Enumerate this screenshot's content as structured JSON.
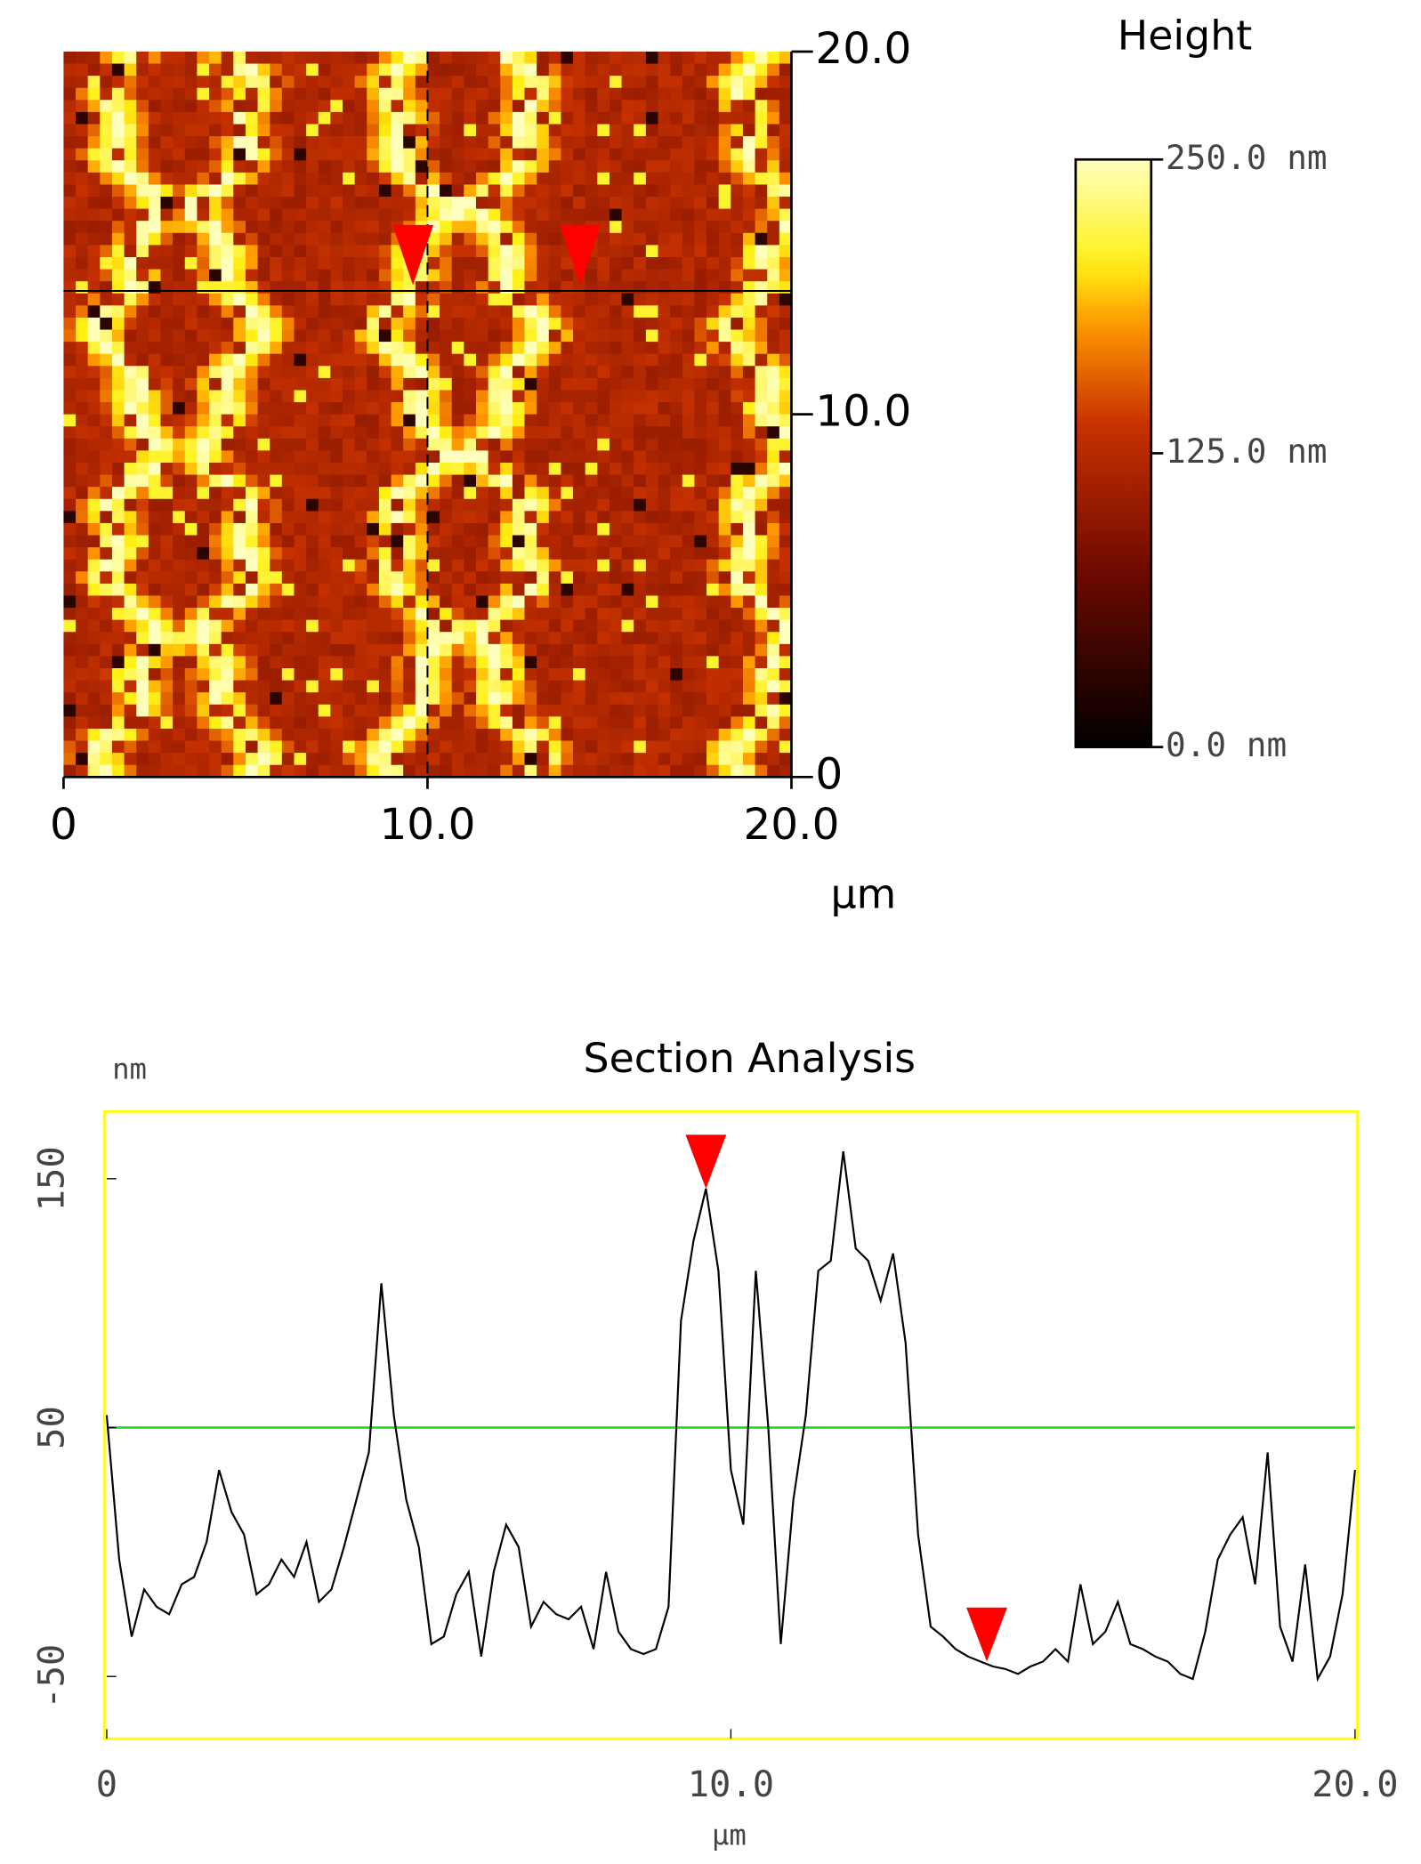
{
  "chart_data": [
    {
      "type": "image",
      "colorbar_title": "Height",
      "x_label": "µm",
      "xlim": [
        0,
        20
      ],
      "ylim": [
        0,
        20
      ],
      "xticks": [
        0,
        {
          "value": 10,
          "label": "10.0"
        },
        {
          "value": 20,
          "label": "20.0"
        }
      ],
      "yticks": [
        0,
        {
          "value": 10,
          "label": "10.0"
        },
        {
          "value": 20,
          "label": "20.0"
        }
      ],
      "clim": [
        0,
        250
      ],
      "cticks": [
        {
          "value": 0,
          "label": "0.0 nm"
        },
        {
          "value": 125,
          "label": "125.0 nm"
        },
        {
          "value": 250,
          "label": "250.0 nm"
        }
      ],
      "section_y": 13.4,
      "cursor_x": 10,
      "markers": [
        9.6,
        14.2
      ],
      "marker_color": "#ff0000"
    },
    {
      "type": "line",
      "title": "Section Analysis",
      "y_label": "nm",
      "x_label": "µm",
      "xlim": [
        0,
        20
      ],
      "ylim": [
        -75,
        177
      ],
      "xticks": [
        0,
        {
          "value": 10,
          "label": "10.0"
        },
        {
          "value": 20,
          "label": "20.0"
        }
      ],
      "yticks": [
        -50,
        50,
        150
      ],
      "reference_line": 50,
      "reference_color": "#22dd22",
      "frame_color": "#ffff00",
      "color": "#000000",
      "markers": [
        9.6,
        14.1
      ],
      "marker_color": "#ff0000",
      "x": [
        0,
        0.2,
        0.4,
        0.6,
        0.8,
        1,
        1.2,
        1.4,
        1.6,
        1.8,
        2,
        2.2,
        2.4,
        2.6,
        2.8,
        3,
        3.2,
        3.4,
        3.6,
        3.8,
        4,
        4.2,
        4.4,
        4.6,
        4.8,
        5,
        5.2,
        5.4,
        5.6,
        5.8,
        6,
        6.2,
        6.4,
        6.6,
        6.8,
        7,
        7.2,
        7.4,
        7.6,
        7.8,
        8,
        8.2,
        8.4,
        8.6,
        8.8,
        9,
        9.2,
        9.4,
        9.6,
        9.8,
        10,
        10.2,
        10.4,
        10.6,
        10.8,
        11,
        11.2,
        11.4,
        11.6,
        11.8,
        12,
        12.2,
        12.4,
        12.6,
        12.8,
        13,
        13.2,
        13.4,
        13.6,
        13.8,
        14,
        14.2,
        14.4,
        14.6,
        14.8,
        15,
        15.2,
        15.4,
        15.6,
        15.8,
        16,
        16.2,
        16.4,
        16.6,
        16.8,
        17,
        17.2,
        17.4,
        17.6,
        17.8,
        18,
        18.2,
        18.4,
        18.6,
        18.8,
        19,
        19.2,
        19.4,
        19.6,
        19.8,
        20
      ],
      "values": [
        55,
        -3,
        -34,
        -15,
        -22,
        -25,
        -13,
        -10,
        4,
        33,
        16,
        7,
        -17,
        -13,
        -3,
        -10,
        4,
        -20,
        -15,
        2,
        21,
        40,
        108,
        55,
        21,
        2,
        -37,
        -34,
        -17,
        -8,
        -42,
        -8,
        11,
        2,
        -30,
        -20,
        -25,
        -27,
        -22,
        -39,
        -8,
        -32,
        -39,
        -41,
        -39,
        -22,
        93,
        125,
        146,
        113,
        33,
        11,
        113,
        50,
        -37,
        21,
        55,
        113,
        117,
        161,
        122,
        117,
        101,
        120,
        84,
        7,
        -30,
        -34,
        -39,
        -42,
        -44,
        -46,
        -47,
        -49,
        -46,
        -44,
        -39,
        -44,
        -13,
        -37,
        -32,
        -20,
        -37,
        -39,
        -42,
        -44,
        -49,
        -51,
        -32,
        -3,
        7,
        14,
        -13,
        40,
        -30,
        -44,
        -5,
        -51,
        -42,
        -17,
        33
      ]
    }
  ]
}
